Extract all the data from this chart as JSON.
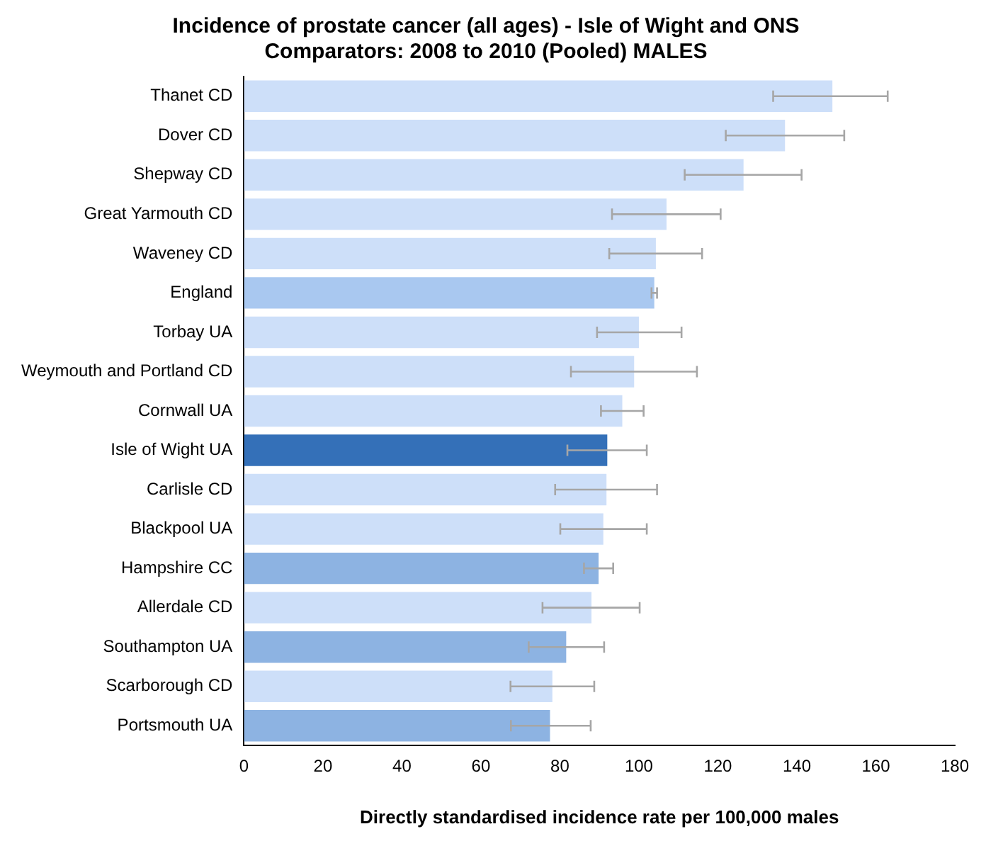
{
  "chart_data": {
    "type": "bar",
    "orientation": "horizontal",
    "title": "Incidence of prostate cancer (all ages) - Isle of Wight and ONS\nComparators: 2008 to 2010 (Pooled) MALES",
    "xlabel": "Directly standardised incidence rate per 100,000 males",
    "categories": [
      "Thanet CD",
      "Dover CD",
      "Shepway CD",
      "Great Yarmouth CD",
      "Waveney CD",
      "England",
      "Torbay UA",
      "Weymouth and Portland CD",
      "Cornwall UA",
      "Isle of Wight UA",
      "Carlisle CD",
      "Blackpool UA",
      "Hampshire CC",
      "Allerdale CD",
      "Southampton UA",
      "Scarborough CD",
      "Portsmouth UA"
    ],
    "values": [
      149,
      137,
      126.5,
      107,
      104.3,
      103.9,
      100,
      98.8,
      95.8,
      92,
      91.8,
      91,
      89.8,
      88,
      81.6,
      78.1,
      77.5
    ],
    "errors": [
      [
        134,
        163
      ],
      [
        122,
        152
      ],
      [
        111.6,
        141.2
      ],
      [
        93.2,
        120.7
      ],
      [
        92.5,
        116
      ],
      [
        103.2,
        104.6
      ],
      [
        89.4,
        110.8
      ],
      [
        82.8,
        114.7
      ],
      [
        90.4,
        101.2
      ],
      [
        81.9,
        102
      ],
      [
        78.8,
        104.6
      ],
      [
        80.1,
        102
      ],
      [
        86.1,
        93.5
      ],
      [
        75.6,
        100.2
      ],
      [
        72.1,
        91.2
      ],
      [
        67.5,
        88.7
      ],
      [
        67.6,
        87.8
      ]
    ],
    "colors": [
      "#cddff9",
      "#cddff9",
      "#cddff9",
      "#cddff9",
      "#cddff9",
      "#a9c8f0",
      "#cddff9",
      "#cddff9",
      "#cddff9",
      "#3470b8",
      "#cddff9",
      "#cddff9",
      "#8db3e2",
      "#cddff9",
      "#8db3e2",
      "#cddff9",
      "#8db3e2"
    ],
    "xlim": [
      0,
      180
    ],
    "xticks": [
      0,
      20,
      40,
      60,
      80,
      100,
      120,
      140,
      160,
      180
    ],
    "grid": false,
    "legend": false
  }
}
